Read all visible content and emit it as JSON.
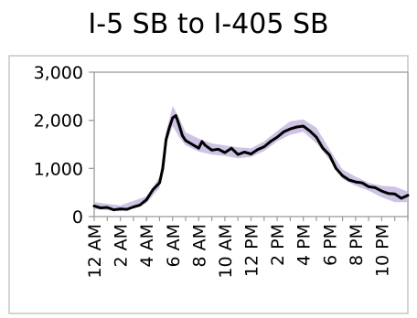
{
  "chart_data": {
    "type": "line",
    "title": "I-5 SB to I-405 SB",
    "xlabel": "",
    "ylabel": "",
    "ylim": [
      0,
      3000
    ],
    "xlim": [
      0,
      24
    ],
    "grid": false,
    "legend": "none",
    "y_ticks": [
      {
        "value": 0,
        "label": "0"
      },
      {
        "value": 1000,
        "label": "1,000"
      },
      {
        "value": 2000,
        "label": "2,000"
      },
      {
        "value": 3000,
        "label": "3,000"
      }
    ],
    "x_ticks": [
      {
        "value": 0,
        "label": "12 AM"
      },
      {
        "value": 2,
        "label": "2 AM"
      },
      {
        "value": 4,
        "label": "4 AM"
      },
      {
        "value": 6,
        "label": "6 AM"
      },
      {
        "value": 8,
        "label": "8 AM"
      },
      {
        "value": 10,
        "label": "10 AM"
      },
      {
        "value": 12,
        "label": "12 PM"
      },
      {
        "value": 14,
        "label": "2 PM"
      },
      {
        "value": 16,
        "label": "4 PM"
      },
      {
        "value": 18,
        "label": "6 PM"
      },
      {
        "value": 20,
        "label": "8 PM"
      },
      {
        "value": 22,
        "label": "10 PM"
      }
    ],
    "series": [
      {
        "role": "mean",
        "color": "#000000",
        "x": [
          0,
          0.5,
          1,
          1.5,
          2,
          2.5,
          3,
          3.5,
          4,
          4.5,
          5,
          5.25,
          5.5,
          5.75,
          6,
          6.25,
          6.5,
          6.75,
          7,
          7.5,
          8,
          8.25,
          8.5,
          9,
          9.5,
          10,
          10.5,
          11,
          11.5,
          12,
          12.5,
          13,
          13.5,
          14,
          14.5,
          15,
          15.5,
          16,
          16.5,
          17,
          17.5,
          18,
          18.5,
          19,
          19.5,
          20,
          20.5,
          21,
          21.5,
          22,
          22.5,
          23,
          23.5,
          24
        ],
        "values": [
          220,
          180,
          190,
          140,
          160,
          150,
          200,
          240,
          350,
          560,
          700,
          1000,
          1600,
          1850,
          2050,
          2100,
          1900,
          1680,
          1580,
          1500,
          1420,
          1560,
          1480,
          1380,
          1400,
          1330,
          1420,
          1290,
          1340,
          1300,
          1390,
          1450,
          1560,
          1650,
          1760,
          1820,
          1860,
          1880,
          1780,
          1650,
          1420,
          1280,
          1000,
          850,
          760,
          720,
          700,
          620,
          600,
          530,
          480,
          470,
          380,
          440
        ]
      },
      {
        "role": "range-band",
        "color": "#c6b9e0",
        "x": [
          0,
          2,
          4,
          5,
          5.5,
          6,
          6.5,
          7,
          8,
          9,
          10,
          11,
          12,
          13,
          14,
          15,
          16,
          17,
          18,
          19,
          20,
          21,
          22,
          23,
          24
        ],
        "upper": [
          300,
          230,
          420,
          820,
          1750,
          2300,
          2050,
          1750,
          1620,
          1520,
          1480,
          1440,
          1420,
          1560,
          1780,
          1980,
          2020,
          1850,
          1400,
          980,
          830,
          700,
          640,
          620,
          520
        ],
        "lower": [
          160,
          110,
          280,
          600,
          1500,
          1880,
          1650,
          1480,
          1350,
          1290,
          1260,
          1210,
          1240,
          1360,
          1560,
          1700,
          1760,
          1520,
          1180,
          780,
          640,
          540,
          400,
          300,
          300
        ]
      }
    ]
  }
}
